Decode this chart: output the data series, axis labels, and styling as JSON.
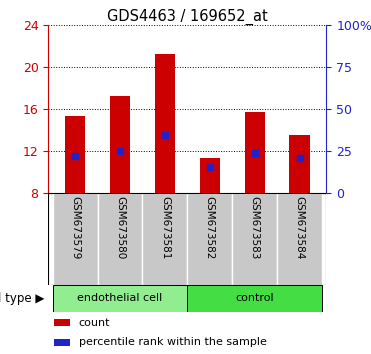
{
  "title": "GDS4463 / 169652_at",
  "samples": [
    "GSM673579",
    "GSM673580",
    "GSM673581",
    "GSM673582",
    "GSM673583",
    "GSM673584"
  ],
  "bar_tops": [
    15.3,
    17.2,
    21.2,
    11.3,
    15.7,
    13.5
  ],
  "bar_base": 8.0,
  "blue_values": [
    11.5,
    12.0,
    13.5,
    10.5,
    11.8,
    11.3
  ],
  "ylim_left": [
    8,
    24
  ],
  "ylim_right": [
    0,
    100
  ],
  "yticks_left": [
    8,
    12,
    16,
    20,
    24
  ],
  "yticks_right": [
    0,
    25,
    50,
    75,
    100
  ],
  "ytick_labels_right": [
    "0",
    "25",
    "50",
    "75",
    "100%"
  ],
  "bar_color": "#cc0000",
  "blue_color": "#2222cc",
  "grid_color": "#000000",
  "groups": [
    {
      "label": "endothelial cell",
      "indices": [
        0,
        1,
        2
      ],
      "color": "#90ee90"
    },
    {
      "label": "control",
      "indices": [
        3,
        4,
        5
      ],
      "color": "#44dd44"
    }
  ],
  "group_bg_color": "#c8c8c8",
  "cell_type_label": "cell type",
  "legend_count_label": "count",
  "legend_pct_label": "percentile rank within the sample",
  "left_tick_color": "#cc0000",
  "right_tick_color": "#2222cc",
  "bar_width": 0.45
}
